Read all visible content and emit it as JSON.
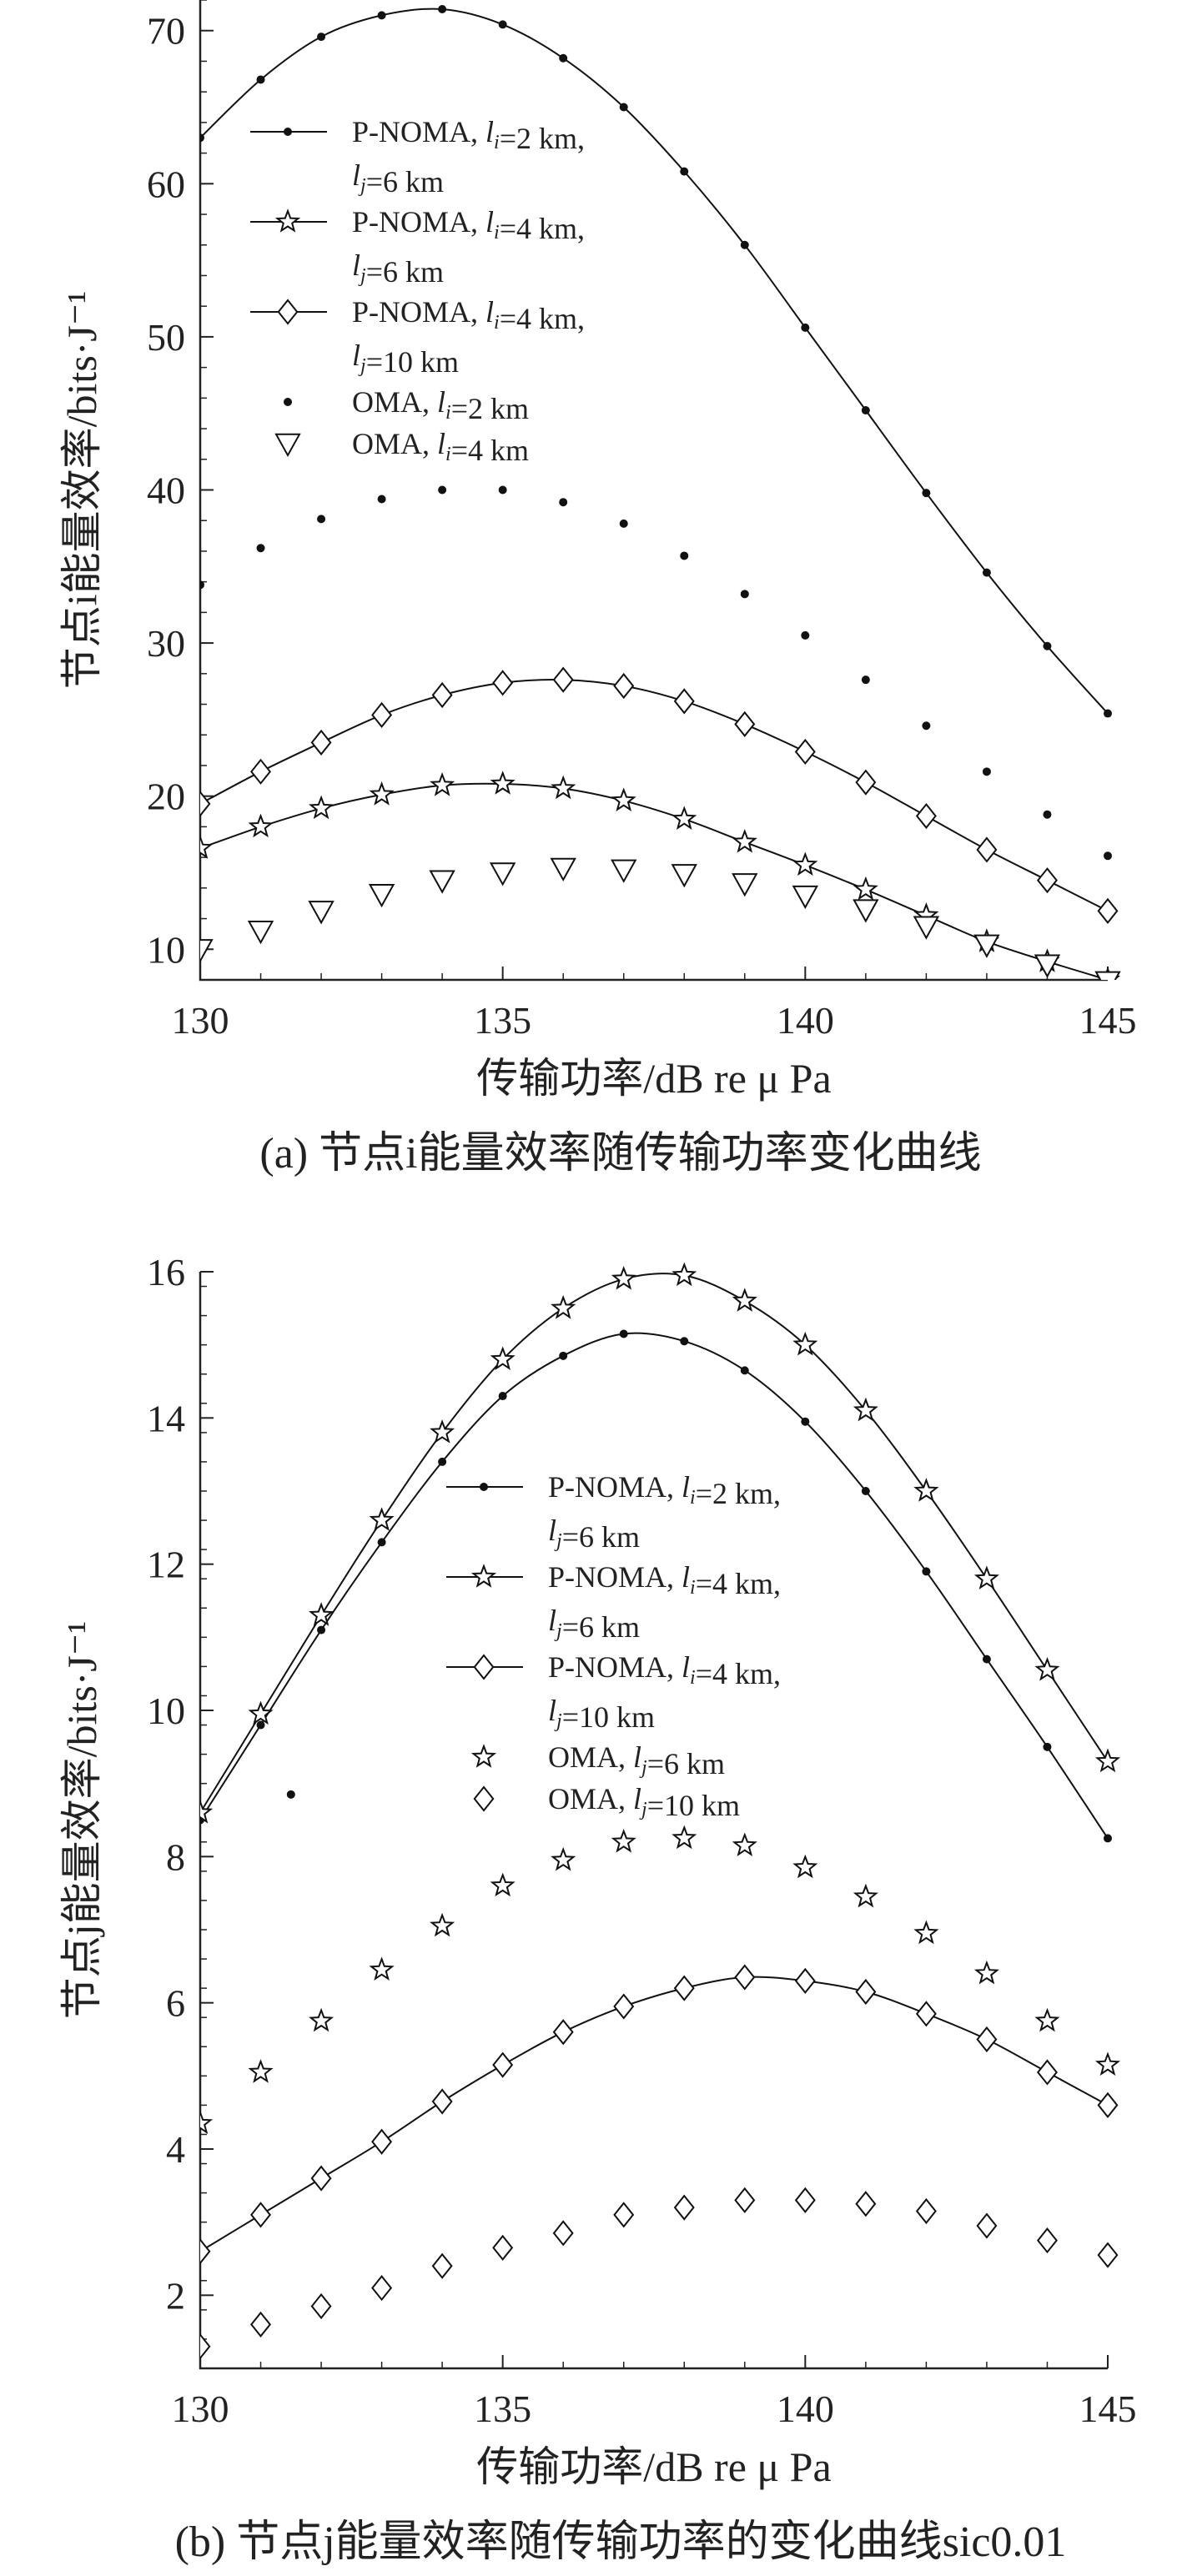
{
  "chart_data": [
    {
      "type": "line",
      "caption": "(a) 节点i能量效率随传输功率变化曲线",
      "xlabel": "传输功率/dB re μ Pa",
      "ylabel": "节点i能量效率/bits·J⁻¹",
      "xlim": [
        130,
        145
      ],
      "ylim": [
        8,
        72
      ],
      "xticks": [
        130,
        135,
        140,
        145
      ],
      "yticks": [
        10,
        20,
        30,
        40,
        50,
        60,
        70
      ],
      "x": [
        130,
        131,
        132,
        133,
        134,
        135,
        136,
        137,
        138,
        139,
        140,
        141,
        142,
        143,
        144,
        145
      ],
      "legend_position": "top-left",
      "series": [
        {
          "name": "P-NOMA, li=2 km,",
          "name_line2": "lj=6 km",
          "marker": "dot",
          "line": true,
          "values": [
            63.0,
            66.8,
            69.6,
            71.0,
            71.4,
            70.4,
            68.2,
            65.0,
            60.8,
            56.0,
            50.6,
            45.2,
            39.8,
            34.6,
            29.8,
            25.4
          ]
        },
        {
          "name": "P-NOMA, li=4 km,",
          "name_line2": "lj=6 km",
          "marker": "star",
          "line": true,
          "values": [
            16.6,
            18.0,
            19.2,
            20.1,
            20.7,
            20.8,
            20.5,
            19.7,
            18.5,
            17.0,
            15.5,
            13.9,
            12.2,
            10.5,
            9.2,
            8.0
          ]
        },
        {
          "name": "P-NOMA, li=4 km,",
          "name_line2": "lj=10 km",
          "marker": "diamond",
          "line": true,
          "values": [
            19.5,
            21.6,
            23.5,
            25.3,
            26.6,
            27.4,
            27.6,
            27.2,
            26.2,
            24.7,
            22.9,
            20.9,
            18.7,
            16.5,
            14.5,
            12.5
          ]
        },
        {
          "name": "OMA, li=2 km",
          "name_line2": "",
          "marker": "dot",
          "line": false,
          "values": [
            33.8,
            36.2,
            38.1,
            39.4,
            40.0,
            40.0,
            39.2,
            37.8,
            35.7,
            33.2,
            30.5,
            27.6,
            24.6,
            21.6,
            18.8,
            16.1
          ]
        },
        {
          "name": "OMA, li=4 km",
          "name_line2": "",
          "marker": "triangle-down",
          "line": false,
          "values": [
            10.0,
            11.2,
            12.5,
            13.6,
            14.5,
            15.0,
            15.3,
            15.2,
            14.9,
            14.3,
            13.5,
            12.6,
            11.5,
            10.3,
            9.0,
            7.9
          ]
        }
      ]
    },
    {
      "type": "line",
      "caption": "(b) 节点j能量效率随传输功率的变化曲线sic0.01",
      "xlabel": "传输功率/dB re μ Pa",
      "ylabel": "节点j能量效率/bits·J⁻¹",
      "xlim": [
        130,
        145
      ],
      "ylim": [
        1,
        16
      ],
      "xticks": [
        130,
        135,
        140,
        145
      ],
      "yticks": [
        2,
        4,
        6,
        8,
        10,
        12,
        14,
        16
      ],
      "x": [
        130,
        131,
        132,
        133,
        134,
        135,
        136,
        137,
        138,
        139,
        140,
        141,
        142,
        143,
        144,
        145
      ],
      "legend_position": "top-left",
      "series": [
        {
          "name": "P-NOMA, li=2 km,",
          "name_line2": "lj=6 km",
          "marker": "dot",
          "line": true,
          "values": [
            8.5,
            9.8,
            11.1,
            12.3,
            13.4,
            14.3,
            14.85,
            15.15,
            15.05,
            14.65,
            13.95,
            13.0,
            11.9,
            10.7,
            9.5,
            8.25
          ]
        },
        {
          "name": "P-NOMA, li=4 km,",
          "name_line2": "lj=6 km",
          "marker": "star",
          "line": true,
          "values": [
            8.6,
            9.95,
            11.3,
            12.6,
            13.8,
            14.8,
            15.5,
            15.9,
            15.95,
            15.6,
            15.0,
            14.1,
            13.0,
            11.8,
            10.55,
            9.3
          ]
        },
        {
          "name": "P-NOMA, li=4 km,",
          "name_line2": "lj=10 km",
          "marker": "diamond",
          "line": true,
          "values": [
            2.6,
            3.1,
            3.6,
            4.1,
            4.65,
            5.15,
            5.6,
            5.95,
            6.2,
            6.35,
            6.3,
            6.15,
            5.85,
            5.5,
            5.05,
            4.6
          ]
        },
        {
          "name": "OMA, lj=6 km",
          "name_line2": "",
          "marker": "star",
          "line": false,
          "values": [
            4.35,
            5.05,
            5.75,
            6.45,
            7.05,
            7.6,
            7.95,
            8.2,
            8.25,
            8.15,
            7.85,
            7.45,
            6.95,
            6.4,
            5.75,
            5.15
          ]
        },
        {
          "name": "OMA, lj=10 km",
          "name_line2": "",
          "marker": "diamond",
          "line": false,
          "values": [
            1.3,
            1.6,
            1.85,
            2.1,
            2.4,
            2.65,
            2.85,
            3.1,
            3.2,
            3.3,
            3.3,
            3.25,
            3.15,
            2.95,
            2.75,
            2.55
          ]
        }
      ],
      "extra_points": [
        {
          "x": 131.5,
          "y": 8.85,
          "marker": "dot"
        }
      ]
    }
  ]
}
